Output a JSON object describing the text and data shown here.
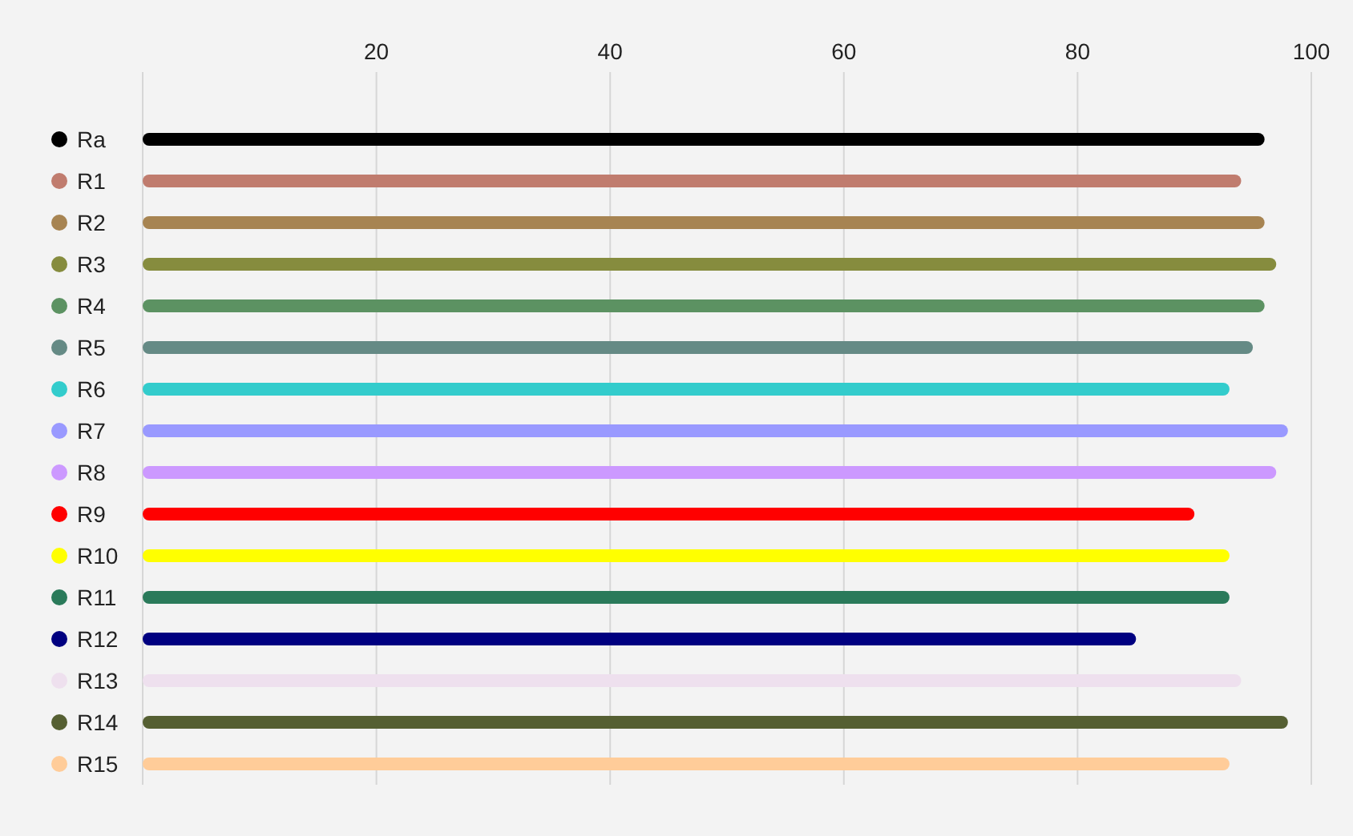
{
  "chart_data": {
    "type": "bar",
    "orientation": "horizontal",
    "categories": [
      "Ra",
      "R1",
      "R2",
      "R3",
      "R4",
      "R5",
      "R6",
      "R7",
      "R8",
      "R9",
      "R10",
      "R11",
      "R12",
      "R13",
      "R14",
      "R15"
    ],
    "values": [
      96,
      94,
      96,
      97,
      96,
      95,
      93,
      98,
      97,
      90,
      93,
      93,
      85,
      94,
      98,
      93
    ],
    "colors": [
      "#000000",
      "#c07c6e",
      "#a78452",
      "#868c3e",
      "#5c9262",
      "#658a85",
      "#33cccc",
      "#9999ff",
      "#cc99ff",
      "#ff0000",
      "#ffff00",
      "#2a7a5a",
      "#000080",
      "#eee0ee",
      "#555f32",
      "#ffcc99"
    ],
    "xlim": [
      0,
      100
    ],
    "xticks": [
      {
        "value": 0,
        "label": null
      },
      20,
      40,
      60,
      80,
      100
    ],
    "grid": "x"
  }
}
